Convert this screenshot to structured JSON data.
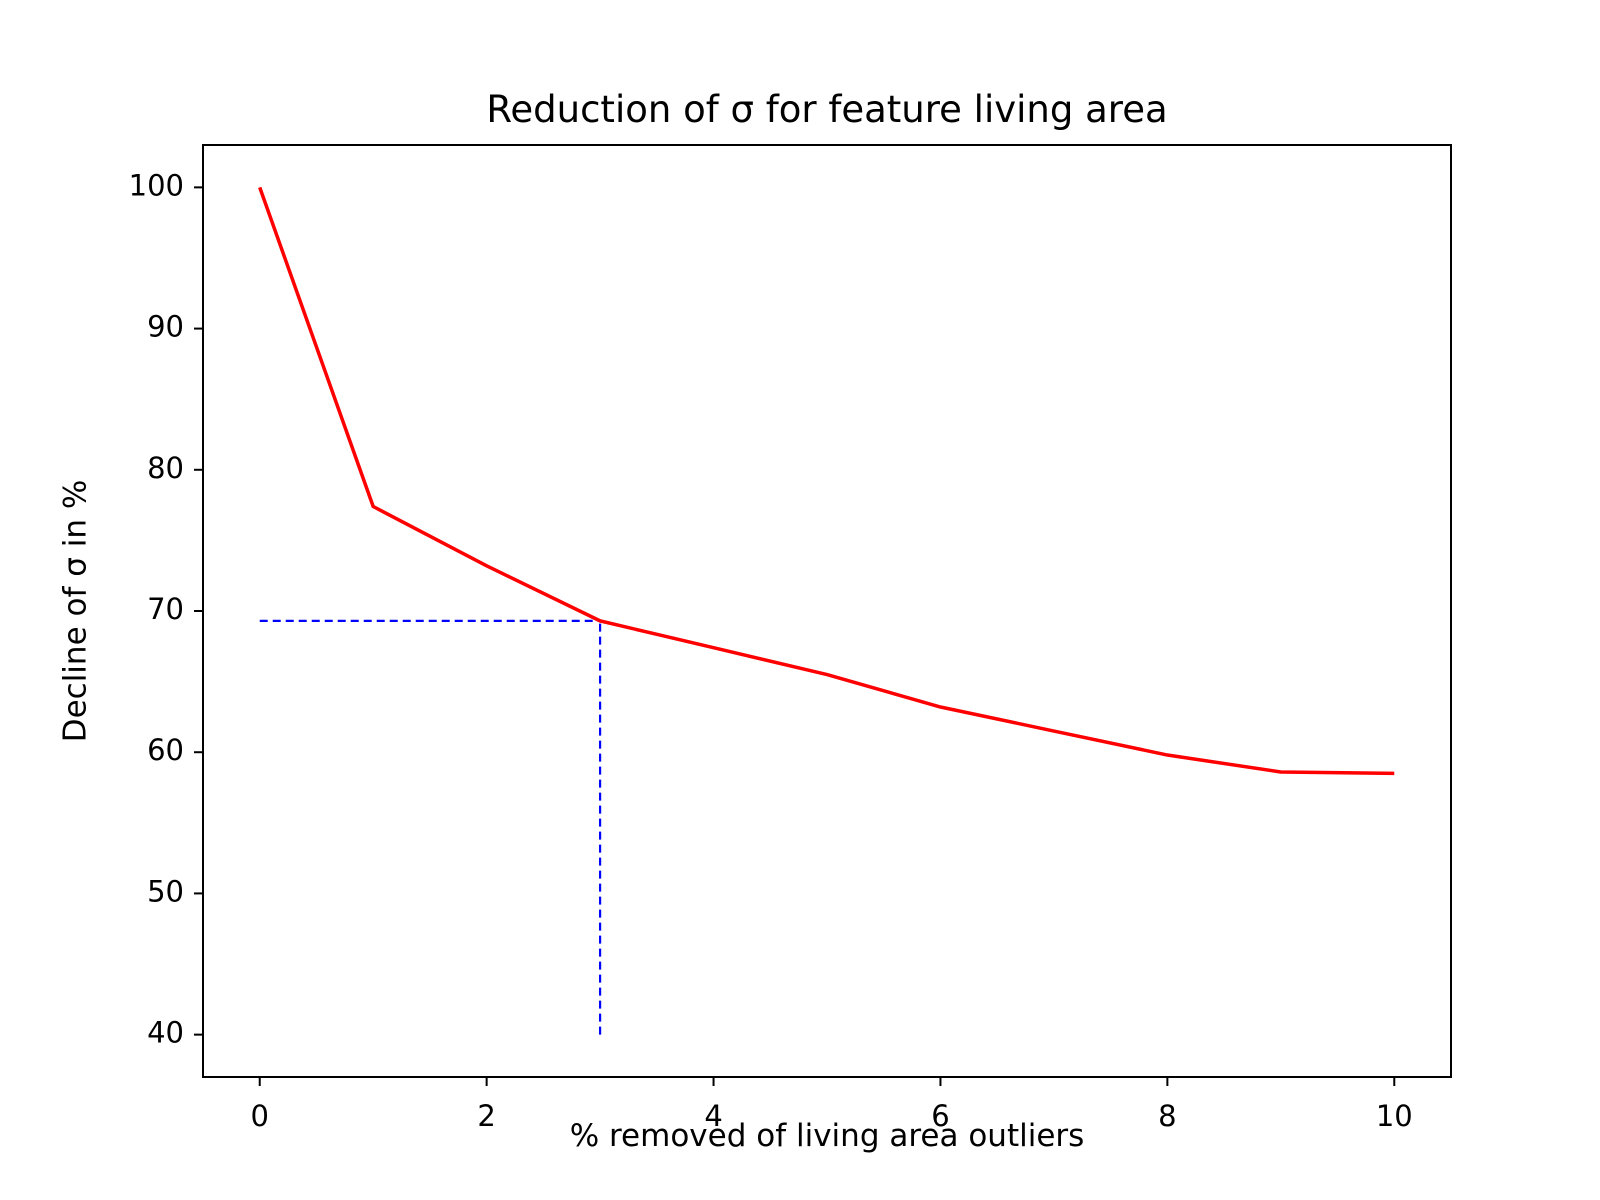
{
  "chart_data": {
    "type": "line",
    "title": "Reduction of σ for feature living area",
    "xlabel": "% removed of living area outliers",
    "ylabel": "Decline of σ in %",
    "xlim": [
      -0.5,
      10.5
    ],
    "ylim": [
      37,
      103
    ],
    "xticks": [
      0,
      2,
      4,
      6,
      8,
      10
    ],
    "yticks": [
      40,
      50,
      60,
      70,
      80,
      90,
      100
    ],
    "grid": false,
    "legend": "none",
    "series": [
      {
        "color": "#ff0000",
        "style": "solid",
        "x": [
          0,
          1,
          2,
          3,
          4,
          5,
          6,
          7,
          8,
          9,
          10
        ],
        "y": [
          100.0,
          77.4,
          73.2,
          69.3,
          67.4,
          65.5,
          63.2,
          61.5,
          59.8,
          58.6,
          58.5
        ]
      }
    ],
    "annotations": [
      {
        "type": "dashed-line",
        "color": "#0000ff",
        "x": [
          0,
          3
        ],
        "y": [
          69.3,
          69.3
        ]
      },
      {
        "type": "dashed-line",
        "color": "#0000ff",
        "x": [
          3,
          3
        ],
        "y": [
          40,
          69.3
        ]
      }
    ]
  }
}
